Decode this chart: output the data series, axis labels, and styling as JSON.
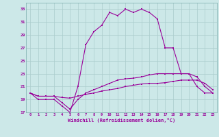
{
  "xlabel": "Windchill (Refroidissement éolien,°C)",
  "hours": [
    0,
    1,
    2,
    3,
    4,
    5,
    6,
    7,
    8,
    9,
    10,
    11,
    12,
    13,
    14,
    15,
    16,
    17,
    18,
    19,
    20,
    21,
    22,
    23
  ],
  "temp": [
    20.0,
    19.0,
    19.0,
    19.0,
    18.0,
    17.0,
    21.0,
    27.5,
    29.5,
    30.5,
    32.5,
    32.0,
    33.0,
    32.5,
    33.0,
    32.5,
    31.5,
    27.0,
    27.0,
    23.0,
    23.0,
    21.0,
    20.0,
    20.0
  ],
  "windchill": [
    20.0,
    19.5,
    19.5,
    19.5,
    18.5,
    17.5,
    19.0,
    20.0,
    20.5,
    21.0,
    21.5,
    22.0,
    22.2,
    22.3,
    22.5,
    22.8,
    23.0,
    23.0,
    23.0,
    23.0,
    23.0,
    22.5,
    21.0,
    20.0
  ],
  "flat_line": [
    20.0,
    19.5,
    19.5,
    19.5,
    19.3,
    19.2,
    19.5,
    19.8,
    20.0,
    20.3,
    20.5,
    20.7,
    21.0,
    21.2,
    21.4,
    21.5,
    21.5,
    21.6,
    21.8,
    22.0,
    22.0,
    22.0,
    21.5,
    20.5
  ],
  "ylim": [
    17,
    34
  ],
  "yticks": [
    17,
    19,
    21,
    23,
    25,
    27,
    29,
    31,
    33
  ],
  "line_color": "#990099",
  "bg_color": "#cce8e8",
  "grid_color": "#aacccc"
}
